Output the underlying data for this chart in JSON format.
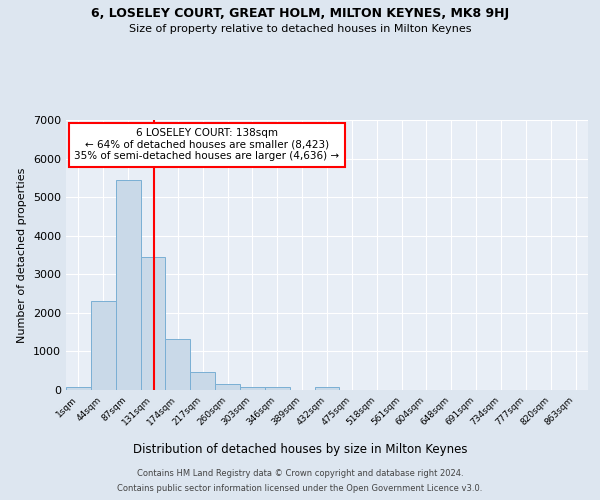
{
  "title1": "6, LOSELEY COURT, GREAT HOLM, MILTON KEYNES, MK8 9HJ",
  "title2": "Size of property relative to detached houses in Milton Keynes",
  "xlabel": "Distribution of detached houses by size in Milton Keynes",
  "ylabel": "Number of detached properties",
  "bin_labels": [
    "1sqm",
    "44sqm",
    "87sqm",
    "131sqm",
    "174sqm",
    "217sqm",
    "260sqm",
    "303sqm",
    "346sqm",
    "389sqm",
    "432sqm",
    "475sqm",
    "518sqm",
    "561sqm",
    "604sqm",
    "648sqm",
    "691sqm",
    "734sqm",
    "777sqm",
    "820sqm",
    "863sqm"
  ],
  "bar_values": [
    80,
    2300,
    5450,
    3450,
    1320,
    470,
    165,
    90,
    75,
    0,
    75,
    0,
    0,
    0,
    0,
    0,
    0,
    0,
    0,
    0,
    0
  ],
  "bar_color": "#c9d9e8",
  "bar_edgecolor": "#7aafd4",
  "vline_color": "red",
  "vline_pos": 3.55,
  "annotation_text": "6 LOSELEY COURT: 138sqm\n← 64% of detached houses are smaller (8,423)\n35% of semi-detached houses are larger (4,636) →",
  "annotation_box_color": "white",
  "annotation_box_edgecolor": "red",
  "ylim": [
    0,
    7000
  ],
  "yticks": [
    0,
    1000,
    2000,
    3000,
    4000,
    5000,
    6000,
    7000
  ],
  "footer1": "Contains HM Land Registry data © Crown copyright and database right 2024.",
  "footer2": "Contains public sector information licensed under the Open Government Licence v3.0.",
  "bg_color": "#dde6f0",
  "plot_bg_color": "#e8eef6"
}
